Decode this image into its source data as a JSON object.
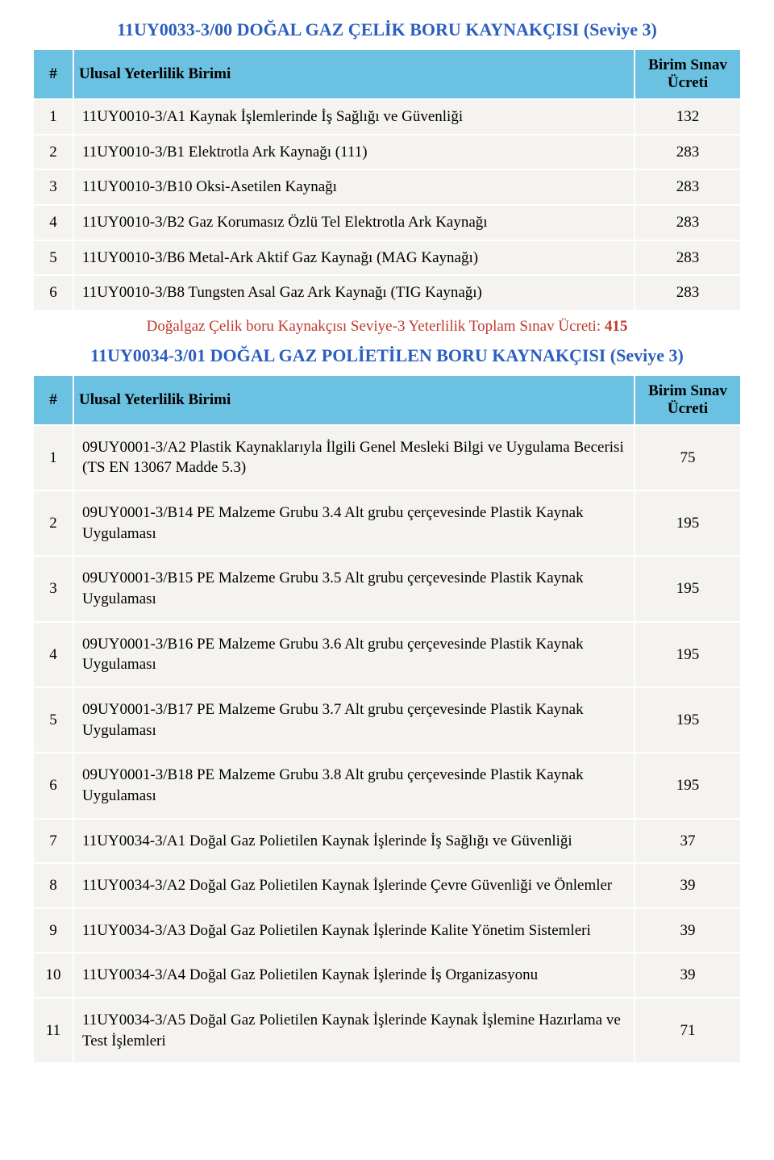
{
  "colors": {
    "title": "#2b5fbf",
    "header_bg": "#6bc1e1",
    "row_bg": "#f5f3f0",
    "total_label": "#c0392b",
    "total_value": "#c0392b",
    "text": "#000000"
  },
  "table1": {
    "title": "11UY0033-3/00 DOĞAL GAZ ÇELİK BORU KAYNAKÇISI (Seviye 3)",
    "columns": {
      "num": "#",
      "desc": "Ulusal Yeterlilik Birimi",
      "fee": "Birim Sınav Ücreti"
    },
    "rows": [
      {
        "n": "1",
        "desc": "11UY0010-3/A1 Kaynak İşlemlerinde İş Sağlığı ve Güvenliği",
        "fee": "132"
      },
      {
        "n": "2",
        "desc": "11UY0010-3/B1 Elektrotla Ark Kaynağı (111)",
        "fee": "283"
      },
      {
        "n": "3",
        "desc": "11UY0010-3/B10 Oksi-Asetilen Kaynağı",
        "fee": "283"
      },
      {
        "n": "4",
        "desc": "11UY0010-3/B2 Gaz Korumasız Özlü Tel Elektrotla Ark Kaynağı",
        "fee": "283"
      },
      {
        "n": "5",
        "desc": "11UY0010-3/B6 Metal-Ark Aktif Gaz Kaynağı (MAG Kaynağı)",
        "fee": "283"
      },
      {
        "n": "6",
        "desc": "11UY0010-3/B8 Tungsten Asal Gaz Ark Kaynağı (TIG Kaynağı)",
        "fee": "283"
      }
    ],
    "total_label": "Doğalgaz Çelik boru Kaynakçısı Seviye-3 Yeterlilik Toplam Sınav Ücreti: ",
    "total_value": "415"
  },
  "table2": {
    "title": "11UY0034-3/01 DOĞAL GAZ POLİETİLEN BORU KAYNAKÇISI (Seviye 3)",
    "columns": {
      "num": "#",
      "desc": "Ulusal Yeterlilik Birimi",
      "fee": "Birim Sınav Ücreti"
    },
    "rows": [
      {
        "n": "1",
        "desc": "09UY0001-3/A2 Plastik Kaynaklarıyla İlgili Genel Mesleki Bilgi ve Uygulama Becerisi (TS EN 13067 Madde 5.3)",
        "fee": "75"
      },
      {
        "n": "2",
        "desc": "09UY0001-3/B14 PE Malzeme Grubu 3.4 Alt grubu çerçevesinde Plastik Kaynak Uygulaması",
        "fee": "195"
      },
      {
        "n": "3",
        "desc": "09UY0001-3/B15 PE Malzeme Grubu 3.5 Alt grubu çerçevesinde Plastik Kaynak Uygulaması",
        "fee": "195"
      },
      {
        "n": "4",
        "desc": "09UY0001-3/B16 PE Malzeme Grubu 3.6 Alt grubu çerçevesinde Plastik Kaynak Uygulaması",
        "fee": "195"
      },
      {
        "n": "5",
        "desc": "09UY0001-3/B17 PE Malzeme Grubu 3.7 Alt grubu çerçevesinde Plastik Kaynak Uygulaması",
        "fee": "195"
      },
      {
        "n": "6",
        "desc": "09UY0001-3/B18 PE Malzeme Grubu 3.8 Alt grubu çerçevesinde Plastik Kaynak Uygulaması",
        "fee": "195"
      },
      {
        "n": "7",
        "desc": "11UY0034-3/A1 Doğal Gaz Polietilen Kaynak İşlerinde İş Sağlığı ve Güvenliği",
        "fee": "37"
      },
      {
        "n": "8",
        "desc": "11UY0034-3/A2 Doğal Gaz Polietilen Kaynak İşlerinde Çevre Güvenliği ve Önlemler",
        "fee": "39"
      },
      {
        "n": "9",
        "desc": "11UY0034-3/A3 Doğal Gaz Polietilen Kaynak İşlerinde Kalite Yönetim Sistemleri",
        "fee": "39"
      },
      {
        "n": "10",
        "desc": "11UY0034-3/A4 Doğal Gaz Polietilen Kaynak İşlerinde İş Organizasyonu",
        "fee": "39"
      },
      {
        "n": "11",
        "desc": "11UY0034-3/A5 Doğal Gaz Polietilen Kaynak İşlerinde Kaynak İşlemine Hazırlama ve Test İşlemleri",
        "fee": "71"
      }
    ]
  }
}
